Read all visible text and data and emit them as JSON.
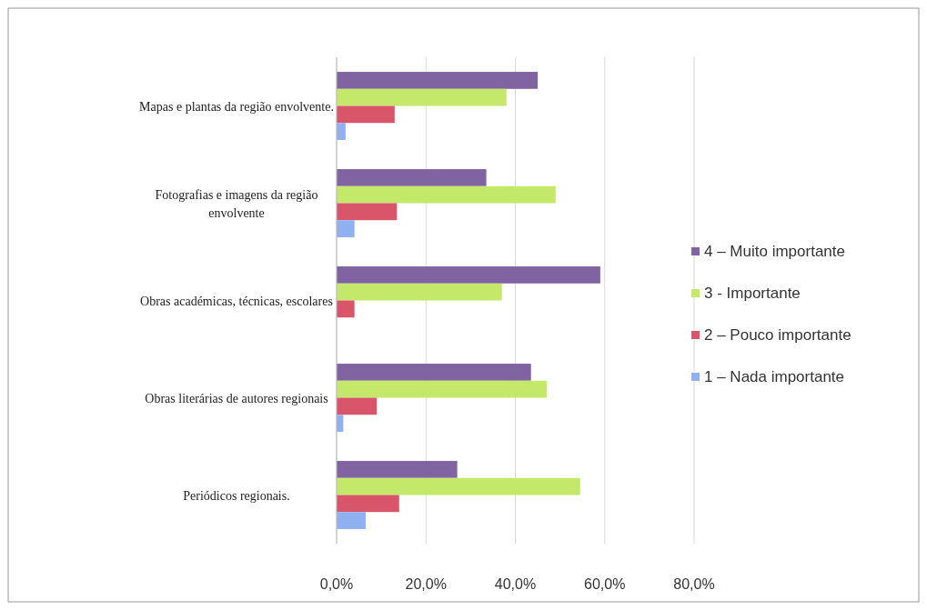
{
  "chart_data": {
    "type": "bar",
    "orientation": "horizontal",
    "categories": [
      "Mapas e plantas da região envolvente.",
      "Fotografias e imagens da região envolvente",
      "Obras académicas, técnicas, escolares",
      "Obras literárias de autores regionais",
      "Periódicos regionais."
    ],
    "series": [
      {
        "name": "4 – Muito importante",
        "color": "#8064a2",
        "values": [
          45,
          33.5,
          59,
          43.5,
          27
        ]
      },
      {
        "name": "3 - Importante",
        "color": "#c3e86a",
        "values": [
          38,
          49,
          37,
          47,
          54.5
        ]
      },
      {
        "name": "2 – Pouco importante",
        "color": "#d9566a",
        "values": [
          13,
          13.5,
          4,
          9,
          14
        ]
      },
      {
        "name": "1 – Nada importante",
        "color": "#8fb1f0",
        "values": [
          2,
          4,
          0,
          1.5,
          6.5
        ]
      }
    ],
    "xlim": [
      0,
      80
    ],
    "xticks": [
      {
        "value": 0,
        "label": "0,0%"
      },
      {
        "value": 20,
        "label": "20,0%"
      },
      {
        "value": 40,
        "label": "40,0%"
      },
      {
        "value": 60,
        "label": "60,0%"
      },
      {
        "value": 80,
        "label": "80,0%"
      }
    ],
    "grid": "x",
    "legend": "right"
  }
}
